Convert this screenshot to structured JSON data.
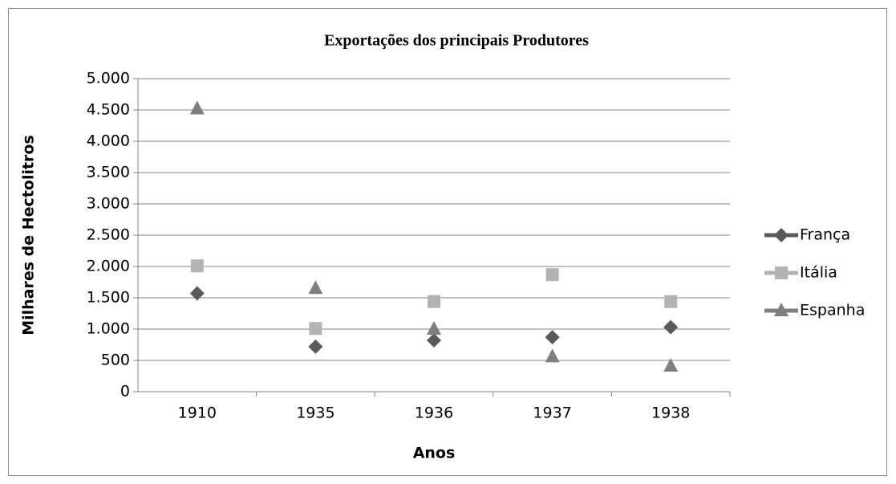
{
  "chart_data": {
    "type": "line",
    "title": "Exportações  dos principais  Produtores",
    "x_label": "Anos",
    "y_label": "Milhares de  Hectolitros",
    "categories": [
      "1910",
      "1935",
      "1936",
      "1937",
      "1938"
    ],
    "series": [
      {
        "name": "França",
        "color": "#595959",
        "marker": "diamond",
        "values": [
          1570,
          720,
          820,
          870,
          1030
        ]
      },
      {
        "name": "Itália",
        "color": "#b3b3b3",
        "marker": "square",
        "values": [
          2010,
          1010,
          1440,
          1870,
          1440
        ]
      },
      {
        "name": "Espanha",
        "color": "#7f7f7f",
        "marker": "triangle",
        "values": [
          4520,
          1650,
          1000,
          560,
          410
        ]
      }
    ],
    "ylim": [
      0,
      5000
    ],
    "yticks": [
      0,
      500,
      {
        "value": 1000,
        "label": "1.000"
      },
      {
        "value": 1500,
        "label": "1.500"
      },
      {
        "value": 2000,
        "label": "2.000"
      },
      {
        "value": 2500,
        "label": "2.500"
      },
      {
        "value": 3000,
        "label": "3.000"
      },
      {
        "value": 3500,
        "label": "3.500"
      },
      {
        "value": 4000,
        "label": "4.000"
      },
      {
        "value": 4500,
        "label": "4.500"
      },
      {
        "value": 5000,
        "label": "5.000"
      }
    ],
    "grid": true,
    "legend": "right"
  }
}
